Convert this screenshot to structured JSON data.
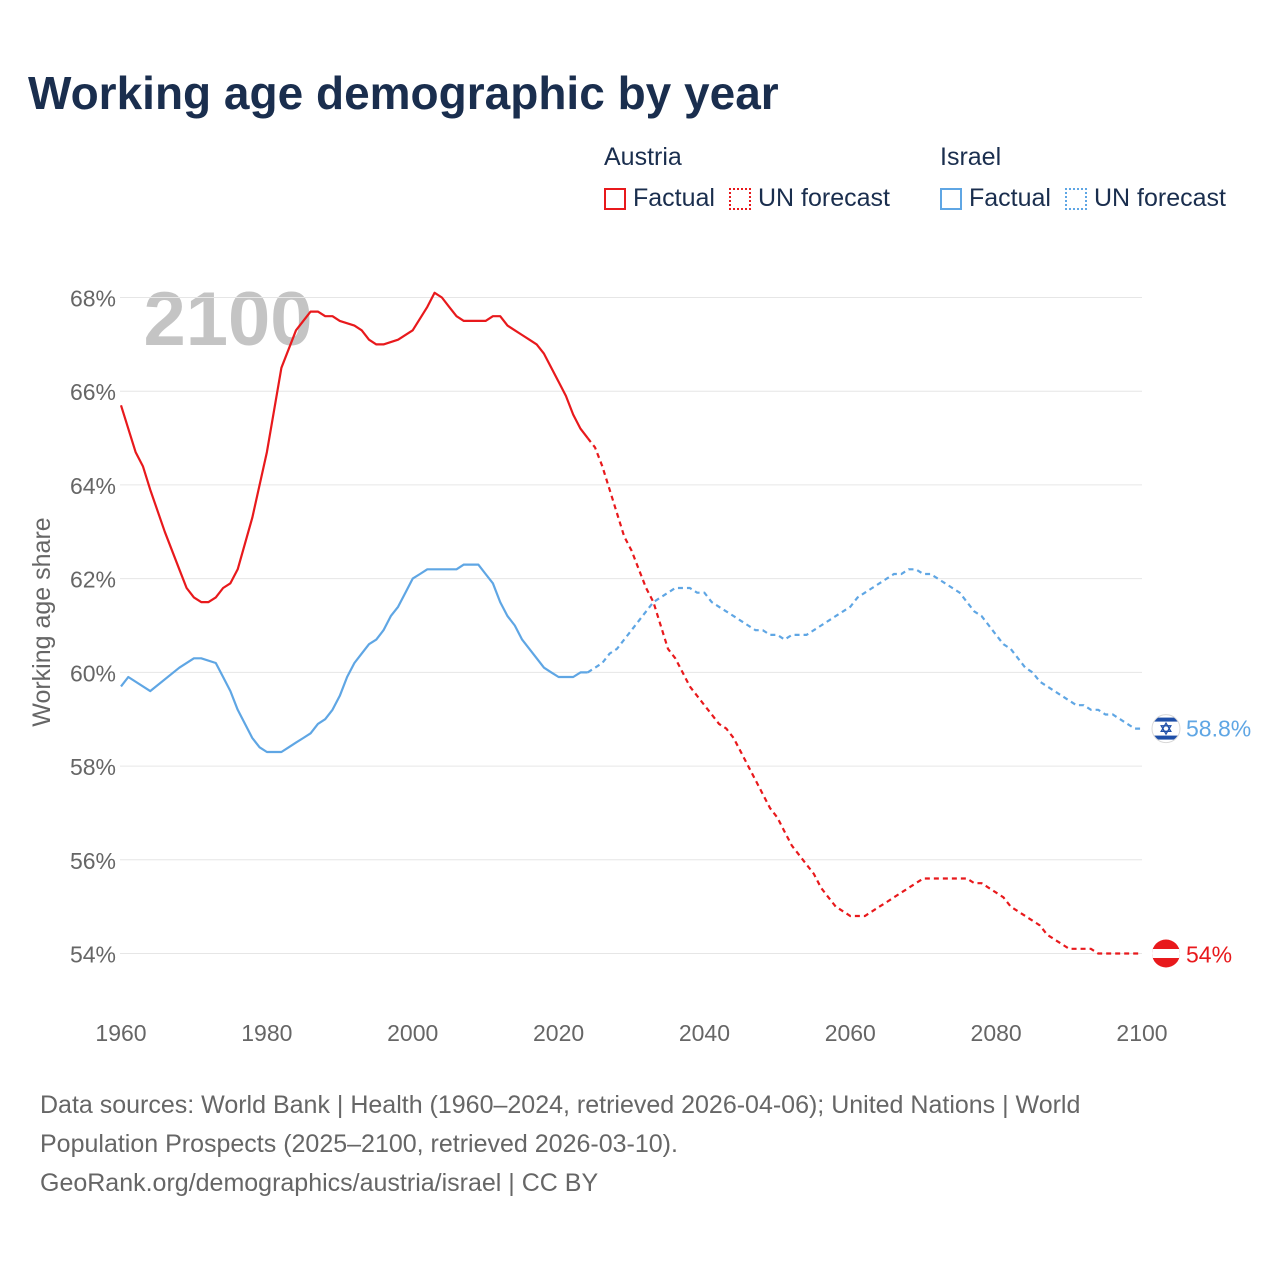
{
  "title": "Working age demographic by year",
  "legend": {
    "groups": [
      {
        "name": "Austria",
        "color": "#e8191c",
        "factual_label": "Factual",
        "forecast_label": "UN forecast"
      },
      {
        "name": "Israel",
        "color": "#5fa6e4",
        "factual_label": "Factual",
        "forecast_label": "UN forecast"
      }
    ]
  },
  "footer": {
    "sources": "Data sources: World Bank | Health (1960–2024, retrieved 2026-04-06); United Nations | World Population Prospects (2025–2100, retrieved 2026-03-10).",
    "link": "GeoRank.org/demographics/austria/israel | CC BY"
  },
  "chart_data": {
    "type": "line",
    "title": "Working age demographic by year",
    "year_watermark": "2100",
    "xlabel": "",
    "ylabel": "Working age share",
    "xlim": [
      1960,
      2100
    ],
    "ylim": [
      53,
      68.6
    ],
    "x_ticks": [
      "1960",
      "1980",
      "2000",
      "2020",
      "2040",
      "2060",
      "2080",
      "2100"
    ],
    "x_tick_values": [
      1960,
      1980,
      2000,
      2020,
      2040,
      2060,
      2080,
      2100
    ],
    "y_ticks": [
      "54%",
      "56%",
      "58%",
      "60%",
      "62%",
      "64%",
      "66%",
      "68%"
    ],
    "y_tick_values": [
      54,
      56,
      58,
      60,
      62,
      64,
      66,
      68
    ],
    "grid": true,
    "legend_position": "top-right",
    "series": [
      {
        "name": "Austria",
        "color": "#e8191c",
        "end_label": "54%",
        "factual": {
          "x": [
            1960,
            1962,
            1963,
            1964,
            1966,
            1968,
            1969,
            1970,
            1971,
            1972,
            1973,
            1974,
            1975,
            1976,
            1978,
            1980,
            1982,
            1984,
            1985,
            1986,
            1987,
            1988,
            1989,
            1990,
            1992,
            1993,
            1994,
            1995,
            1996,
            1998,
            2000,
            2002,
            2003,
            2004,
            2005,
            2006,
            2007,
            2008,
            2009,
            2010,
            2011,
            2012,
            2013,
            2014,
            2015,
            2016,
            2017,
            2018,
            2019,
            2020,
            2021,
            2022,
            2023,
            2024
          ],
          "y": [
            65.7,
            64.7,
            64.4,
            63.9,
            63.0,
            62.2,
            61.8,
            61.6,
            61.5,
            61.5,
            61.6,
            61.8,
            61.9,
            62.2,
            63.3,
            64.7,
            66.5,
            67.3,
            67.5,
            67.7,
            67.7,
            67.6,
            67.6,
            67.5,
            67.4,
            67.3,
            67.1,
            67.0,
            67.0,
            67.1,
            67.3,
            67.8,
            68.1,
            68.0,
            67.8,
            67.6,
            67.5,
            67.5,
            67.5,
            67.5,
            67.6,
            67.6,
            67.4,
            67.3,
            67.2,
            67.1,
            67.0,
            66.8,
            66.5,
            66.2,
            65.9,
            65.5,
            65.2,
            65.0
          ]
        },
        "forecast": {
          "x": [
            2024,
            2025,
            2026,
            2027,
            2028,
            2029,
            2030,
            2031,
            2032,
            2033,
            2034,
            2035,
            2036,
            2037,
            2038,
            2039,
            2040,
            2041,
            2042,
            2043,
            2044,
            2045,
            2046,
            2047,
            2048,
            2049,
            2050,
            2051,
            2052,
            2053,
            2054,
            2055,
            2056,
            2057,
            2058,
            2059,
            2060,
            2061,
            2062,
            2063,
            2064,
            2065,
            2066,
            2067,
            2068,
            2069,
            2070,
            2072,
            2074,
            2076,
            2077,
            2078,
            2079,
            2080,
            2081,
            2082,
            2083,
            2084,
            2085,
            2086,
            2087,
            2088,
            2089,
            2090,
            2092,
            2093,
            2094,
            2096,
            2098,
            2100
          ],
          "y": [
            65.0,
            64.8,
            64.4,
            63.9,
            63.4,
            62.9,
            62.6,
            62.2,
            61.8,
            61.5,
            61.0,
            60.5,
            60.3,
            60.0,
            59.7,
            59.5,
            59.3,
            59.1,
            58.9,
            58.8,
            58.6,
            58.3,
            58.0,
            57.7,
            57.4,
            57.1,
            56.9,
            56.6,
            56.3,
            56.1,
            55.9,
            55.7,
            55.4,
            55.2,
            55.0,
            54.9,
            54.8,
            54.8,
            54.8,
            54.9,
            55.0,
            55.1,
            55.2,
            55.3,
            55.4,
            55.5,
            55.6,
            55.6,
            55.6,
            55.6,
            55.5,
            55.5,
            55.4,
            55.3,
            55.2,
            55.0,
            54.9,
            54.8,
            54.7,
            54.6,
            54.4,
            54.3,
            54.2,
            54.1,
            54.1,
            54.1,
            54.0,
            54.0,
            54.0,
            54.0
          ]
        }
      },
      {
        "name": "Israel",
        "color": "#5fa6e4",
        "end_label": "58.8%",
        "factual": {
          "x": [
            1960,
            1961,
            1964,
            1968,
            1970,
            1971,
            1973,
            1974,
            1975,
            1976,
            1977,
            1978,
            1979,
            1980,
            1982,
            1983,
            1984,
            1985,
            1986,
            1987,
            1988,
            1989,
            1990,
            1991,
            1992,
            1993,
            1994,
            1995,
            1996,
            1997,
            1998,
            1999,
            2000,
            2001,
            2002,
            2003,
            2004,
            2005,
            2006,
            2007,
            2008,
            2009,
            2010,
            2011,
            2012,
            2013,
            2014,
            2015,
            2016,
            2017,
            2018,
            2019,
            2020,
            2021,
            2022,
            2023,
            2024
          ],
          "y": [
            59.7,
            59.9,
            59.6,
            60.1,
            60.3,
            60.3,
            60.2,
            59.9,
            59.6,
            59.2,
            58.9,
            58.6,
            58.4,
            58.3,
            58.3,
            58.4,
            58.5,
            58.6,
            58.7,
            58.9,
            59.0,
            59.2,
            59.5,
            59.9,
            60.2,
            60.4,
            60.6,
            60.7,
            60.9,
            61.2,
            61.4,
            61.7,
            62.0,
            62.1,
            62.2,
            62.2,
            62.2,
            62.2,
            62.2,
            62.3,
            62.3,
            62.3,
            62.1,
            61.9,
            61.5,
            61.2,
            61.0,
            60.7,
            60.5,
            60.3,
            60.1,
            60.0,
            59.9,
            59.9,
            59.9,
            60.0,
            60.0
          ]
        },
        "forecast": {
          "x": [
            2024,
            2025,
            2026,
            2027,
            2028,
            2029,
            2030,
            2031,
            2032,
            2033,
            2034,
            2035,
            2036,
            2037,
            2038,
            2039,
            2040,
            2041,
            2042,
            2043,
            2044,
            2045,
            2046,
            2047,
            2048,
            2049,
            2050,
            2051,
            2052,
            2053,
            2054,
            2055,
            2056,
            2057,
            2058,
            2059,
            2060,
            2061,
            2062,
            2063,
            2064,
            2065,
            2066,
            2067,
            2068,
            2069,
            2070,
            2071,
            2072,
            2073,
            2074,
            2075,
            2076,
            2077,
            2078,
            2079,
            2080,
            2081,
            2082,
            2083,
            2084,
            2085,
            2086,
            2087,
            2088,
            2089,
            2090,
            2091,
            2092,
            2093,
            2094,
            2095,
            2096,
            2097,
            2098,
            2099,
            2100
          ],
          "y": [
            60.0,
            60.1,
            60.2,
            60.4,
            60.5,
            60.7,
            60.9,
            61.1,
            61.3,
            61.5,
            61.6,
            61.7,
            61.8,
            61.8,
            61.8,
            61.7,
            61.7,
            61.5,
            61.4,
            61.3,
            61.2,
            61.1,
            61.0,
            60.9,
            60.9,
            60.8,
            60.8,
            60.7,
            60.8,
            60.8,
            60.8,
            60.9,
            61.0,
            61.1,
            61.2,
            61.3,
            61.4,
            61.6,
            61.7,
            61.8,
            61.9,
            62.0,
            62.1,
            62.1,
            62.2,
            62.2,
            62.1,
            62.1,
            62.0,
            61.9,
            61.8,
            61.7,
            61.5,
            61.3,
            61.2,
            61.0,
            60.8,
            60.6,
            60.5,
            60.3,
            60.1,
            60.0,
            59.8,
            59.7,
            59.6,
            59.5,
            59.4,
            59.3,
            59.3,
            59.2,
            59.2,
            59.1,
            59.1,
            59.0,
            58.9,
            58.8,
            58.8
          ]
        }
      }
    ]
  }
}
